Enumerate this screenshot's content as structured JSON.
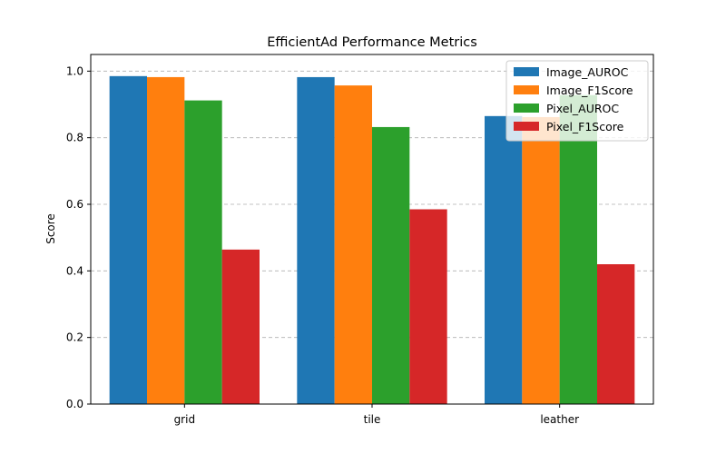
{
  "chart_data": {
    "type": "bar",
    "title": "EfficientAd Performance Metrics",
    "xlabel": "",
    "ylabel": "Score",
    "categories": [
      "grid",
      "tile",
      "leather"
    ],
    "series": [
      {
        "name": "Image_AUROC",
        "color": "#1f77b4",
        "values": [
          0.985,
          0.982,
          0.865
        ]
      },
      {
        "name": "Image_F1Score",
        "color": "#ff7f0e",
        "values": [
          0.982,
          0.957,
          0.862
        ]
      },
      {
        "name": "Pixel_AUROC",
        "color": "#2ca02c",
        "values": [
          0.912,
          0.832,
          0.928
        ]
      },
      {
        "name": "Pixel_F1Score",
        "color": "#d62728",
        "values": [
          0.464,
          0.585,
          0.42
        ]
      }
    ],
    "ylim": [
      0,
      1.05
    ],
    "yticks": [
      0.0,
      0.2,
      0.4,
      0.6,
      0.8,
      1.0
    ],
    "ytick_labels": [
      "0.0",
      "0.2",
      "0.4",
      "0.6",
      "0.8",
      "1.0"
    ],
    "grid": "y-dashed",
    "legend_position": "top-right"
  }
}
